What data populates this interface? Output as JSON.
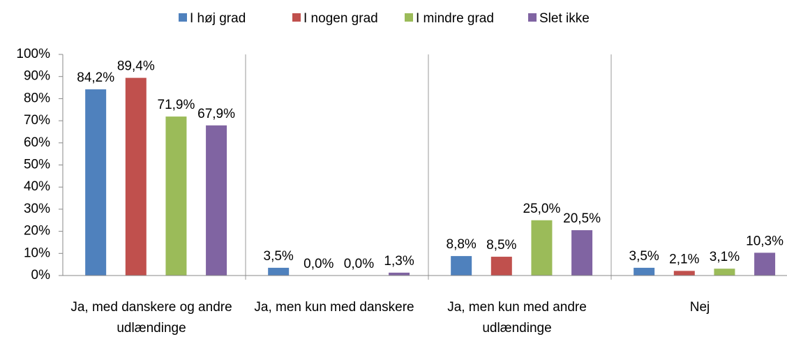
{
  "chart_data": {
    "type": "bar",
    "categories": [
      "Ja, med danskere og andre udlændinge",
      "Ja, men kun med danskere",
      "Ja, men kun med andre udlændinge",
      "Nej"
    ],
    "series": [
      {
        "name": "I høj grad",
        "color": "#4f81bd",
        "values": [
          84.2,
          3.5,
          8.8,
          3.5
        ],
        "value_labels": [
          "84,2%",
          "3,5%",
          "8,8%",
          "3,5%"
        ]
      },
      {
        "name": "I nogen grad",
        "color": "#c0504d",
        "values": [
          89.4,
          0.0,
          8.5,
          2.1
        ],
        "value_labels": [
          "89,4%",
          "0,0%",
          "8,5%",
          "2,1%"
        ]
      },
      {
        "name": "I mindre grad",
        "color": "#9bbb59",
        "values": [
          71.9,
          0.0,
          25.0,
          3.1
        ],
        "value_labels": [
          "71,9%",
          "0,0%",
          "25,0%",
          "3,1%"
        ]
      },
      {
        "name": "Slet ikke",
        "color": "#8064a2",
        "values": [
          67.9,
          1.3,
          20.5,
          10.3
        ],
        "value_labels": [
          "67,9%",
          "1,3%",
          "20,5%",
          "10,3%"
        ]
      }
    ],
    "ylim": [
      0,
      100
    ],
    "yticks": [
      {
        "value": 0,
        "label": "0%"
      },
      {
        "value": 10,
        "label": "10%"
      },
      {
        "value": 20,
        "label": "20%"
      },
      {
        "value": 30,
        "label": "30%"
      },
      {
        "value": 40,
        "label": "40%"
      },
      {
        "value": 50,
        "label": "50%"
      },
      {
        "value": 60,
        "label": "60%"
      },
      {
        "value": 70,
        "label": "70%"
      },
      {
        "value": 80,
        "label": "80%"
      },
      {
        "value": 90,
        "label": "90%"
      },
      {
        "value": 100,
        "label": "100%"
      }
    ],
    "legend": "top"
  }
}
